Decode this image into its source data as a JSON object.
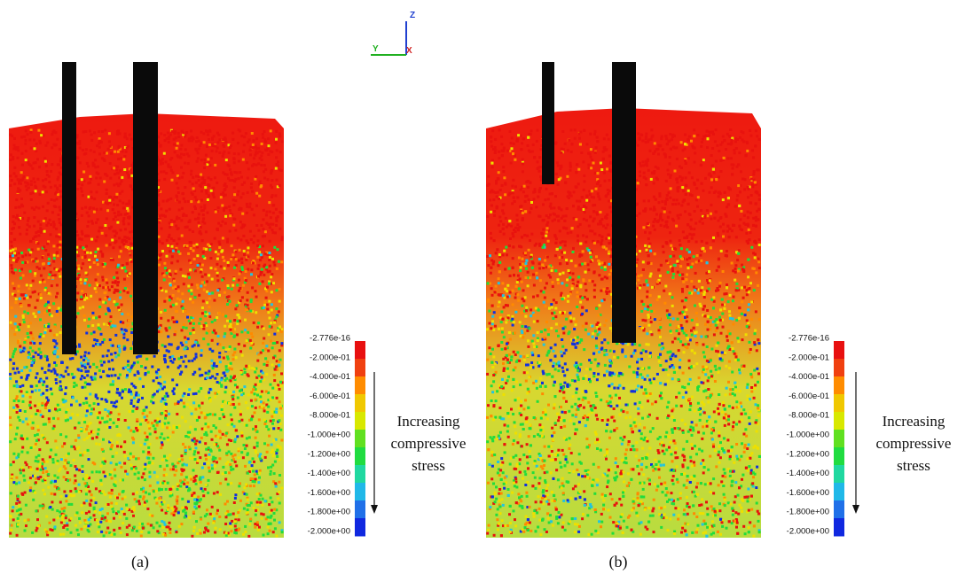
{
  "figure": {
    "axes_triad": {
      "z": "Z",
      "y": "Y",
      "x": "X"
    },
    "panels": [
      {
        "caption": "(a)",
        "colorbar_labels": [
          "-2.776e-16",
          "-2.000e-01",
          "-4.000e-01",
          "-6.000e-01",
          "-8.000e-01",
          "-1.000e+00",
          "-1.200e+00",
          "-1.400e+00",
          "-1.600e+00",
          "-1.800e+00",
          "-2.000e+00"
        ],
        "annotation": [
          "Increasing",
          "compressive",
          "stress"
        ]
      },
      {
        "caption": "(b)",
        "colorbar_labels": [
          "-2.776e-16",
          "-2.000e-01",
          "-4.000e-01",
          "-6.000e-01",
          "-8.000e-01",
          "-1.000e+00",
          "-1.200e+00",
          "-1.400e+00",
          "-1.600e+00",
          "-1.800e+00",
          "-2.000e+00"
        ],
        "annotation": [
          "Increasing",
          "compressive",
          "stress"
        ]
      }
    ]
  }
}
